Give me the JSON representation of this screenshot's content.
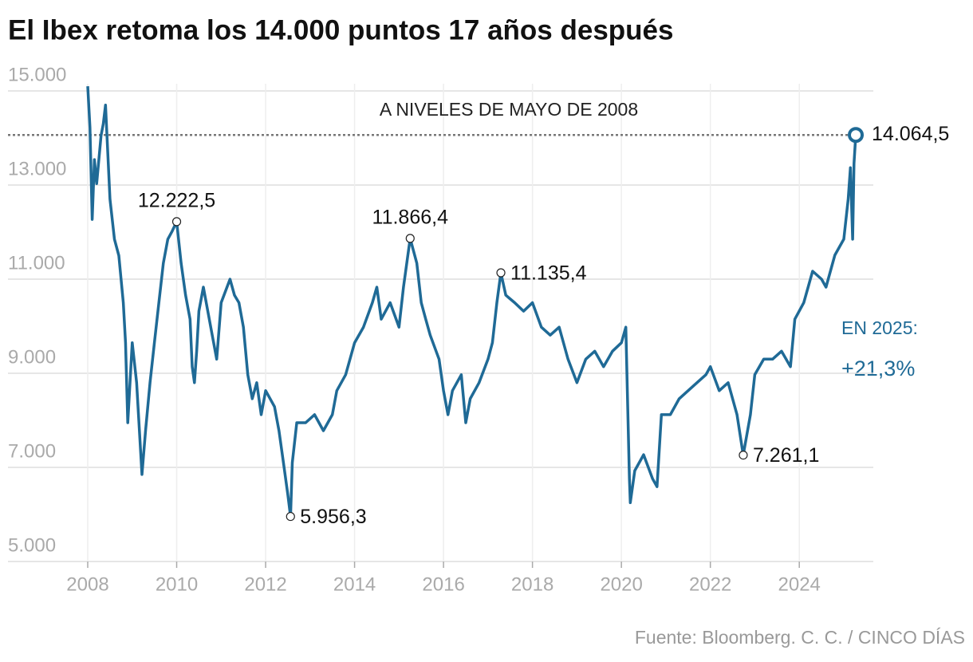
{
  "chart_data": {
    "type": "line",
    "title": "El Ibex retoma los 14.000 puntos 17 años después",
    "source": "Fuente: Bloomberg. C. C. / CINCO DÍAS",
    "color": "#1f6a96",
    "grid": true,
    "xlim": [
      2008,
      2025.7
    ],
    "xticks": [
      2008,
      2010,
      2012,
      2014,
      2016,
      2018,
      2020,
      2022,
      2024
    ],
    "ylim": [
      5000,
      15200
    ],
    "yticks": [
      {
        "value": 5000,
        "label": "5.000"
      },
      {
        "value": 7000,
        "label": "7.000"
      },
      {
        "value": 9000,
        "label": "9.000"
      },
      {
        "value": 11000,
        "label": "11.000"
      },
      {
        "value": 13000,
        "label": "13.000"
      },
      {
        "value": 15000,
        "label": "15.000"
      }
    ],
    "x": [
      2008.0,
      2008.05,
      2008.1,
      2008.15,
      2008.2,
      2008.3,
      2008.35,
      2008.4,
      2008.5,
      2008.6,
      2008.7,
      2008.8,
      2008.85,
      2008.9,
      2009.0,
      2009.1,
      2009.22,
      2009.3,
      2009.4,
      2009.5,
      2009.6,
      2009.7,
      2009.8,
      2009.9,
      2010.0,
      2010.1,
      2010.2,
      2010.3,
      2010.35,
      2010.4,
      2010.45,
      2010.5,
      2010.6,
      2010.8,
      2010.9,
      2011.0,
      2011.2,
      2011.3,
      2011.4,
      2011.5,
      2011.6,
      2011.7,
      2011.8,
      2011.9,
      2012.0,
      2012.2,
      2012.3,
      2012.4,
      2012.5,
      2012.56,
      2012.6,
      2012.7,
      2012.9,
      2013.1,
      2013.3,
      2013.5,
      2013.6,
      2013.8,
      2014.0,
      2014.2,
      2014.4,
      2014.5,
      2014.6,
      2014.8,
      2015.0,
      2015.1,
      2015.25,
      2015.4,
      2015.5,
      2015.6,
      2015.7,
      2015.9,
      2016.0,
      2016.1,
      2016.2,
      2016.4,
      2016.5,
      2016.6,
      2016.8,
      2017.0,
      2017.1,
      2017.2,
      2017.29,
      2017.4,
      2017.6,
      2017.8,
      2018.0,
      2018.2,
      2018.4,
      2018.6,
      2018.8,
      2019.0,
      2019.2,
      2019.4,
      2019.6,
      2019.8,
      2020.0,
      2020.1,
      2020.18,
      2020.2,
      2020.3,
      2020.5,
      2020.7,
      2020.8,
      2020.9,
      2021.1,
      2021.3,
      2021.5,
      2021.7,
      2021.9,
      2022.0,
      2022.2,
      2022.4,
      2022.6,
      2022.74,
      2022.9,
      2023.0,
      2023.2,
      2023.4,
      2023.6,
      2023.8,
      2023.9,
      2024.1,
      2024.3,
      2024.5,
      2024.6,
      2024.8,
      2025.0,
      2025.1,
      2025.15,
      2025.2,
      2025.23,
      2025.27
    ],
    "values": [
      15100,
      14220,
      12270,
      13540,
      13030,
      14050,
      14300,
      14700,
      12700,
      11850,
      11500,
      10500,
      9650,
      7950,
      9650,
      8800,
      6850,
      7780,
      8800,
      9650,
      10500,
      11340,
      11850,
      12020,
      12222.5,
      11340,
      10660,
      10150,
      9140,
      8800,
      9470,
      10320,
      10830,
      9810,
      9300,
      10500,
      11000,
      10660,
      10500,
      9980,
      8970,
      8460,
      8800,
      8120,
      8630,
      8290,
      7780,
      7100,
      6420,
      5956.3,
      7100,
      7950,
      7950,
      8120,
      7780,
      8120,
      8630,
      8970,
      9650,
      9980,
      10500,
      10830,
      10150,
      10500,
      9980,
      10830,
      11866.4,
      11340,
      10500,
      10150,
      9810,
      9300,
      8630,
      8120,
      8630,
      8970,
      7950,
      8460,
      8800,
      9300,
      9650,
      10500,
      11135.4,
      10660,
      10500,
      10320,
      10500,
      9980,
      9810,
      9980,
      9300,
      8800,
      9300,
      9470,
      9140,
      9470,
      9650,
      9980,
      6760,
      6250,
      6930,
      7270,
      6760,
      6590,
      8120,
      8120,
      8460,
      8630,
      8800,
      8970,
      9140,
      8630,
      8800,
      8120,
      7261.1,
      8120,
      8970,
      9300,
      9300,
      9470,
      9140,
      10150,
      10500,
      11170,
      11000,
      10830,
      11510,
      11850,
      12700,
      13370,
      11850,
      13460,
      14064.5
    ],
    "highlights": [
      {
        "x": 2010.0,
        "value": 12222.5,
        "label": "12.222,5"
      },
      {
        "x": 2012.56,
        "value": 5956.3,
        "label": "5.956,3"
      },
      {
        "x": 2015.25,
        "value": 11866.4,
        "label": "11.866,4"
      },
      {
        "x": 2017.29,
        "value": 11135.4,
        "label": "11.135,4"
      },
      {
        "x": 2022.74,
        "value": 7261.1,
        "label": "7.261,1"
      },
      {
        "x": 2025.27,
        "value": 14064.5,
        "label": "14.064,5"
      }
    ],
    "reference": {
      "value": 14064.5,
      "label": "A NIVELES DE MAYO DE 2008"
    },
    "note": {
      "title": "EN 2025:",
      "text": "+21,3%"
    }
  }
}
